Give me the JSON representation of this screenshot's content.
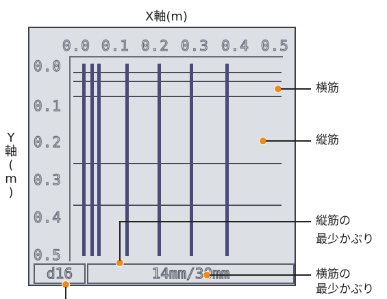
{
  "axis": {
    "x_title": "X軸(m)",
    "y_title_chars": [
      "Y",
      "軸",
      "(",
      "m",
      ")"
    ]
  },
  "x_ticks": [
    "0.0",
    "0.1",
    "0.2",
    "0.3",
    "0.4",
    "0.5"
  ],
  "y_ticks": [
    "0.0",
    "0.1",
    "0.2",
    "0.3",
    "0.4",
    "0.5"
  ],
  "status": {
    "diameter": "d16",
    "cover": "14mm/30mm"
  },
  "callouts": {
    "horizontal_rebar": "横筋",
    "vertical_rebar": "縦筋",
    "vertical_cover_line1": "縦筋の",
    "vertical_cover_line2": "最少かぶり",
    "horizontal_cover_line1": "横筋の",
    "horizontal_cover_line2": "最少かぶり"
  },
  "colors": {
    "lcd_background": "#dcdfe4",
    "rebar": "#4b4a78",
    "marker": "#f08a18"
  },
  "rebar_layout": {
    "vertical_x_m": [
      0.012,
      0.032,
      0.05,
      0.12,
      0.2,
      0.28,
      0.37
    ],
    "horizontal_y_m": [
      0.022,
      0.045,
      0.085,
      0.26,
      0.37
    ]
  }
}
